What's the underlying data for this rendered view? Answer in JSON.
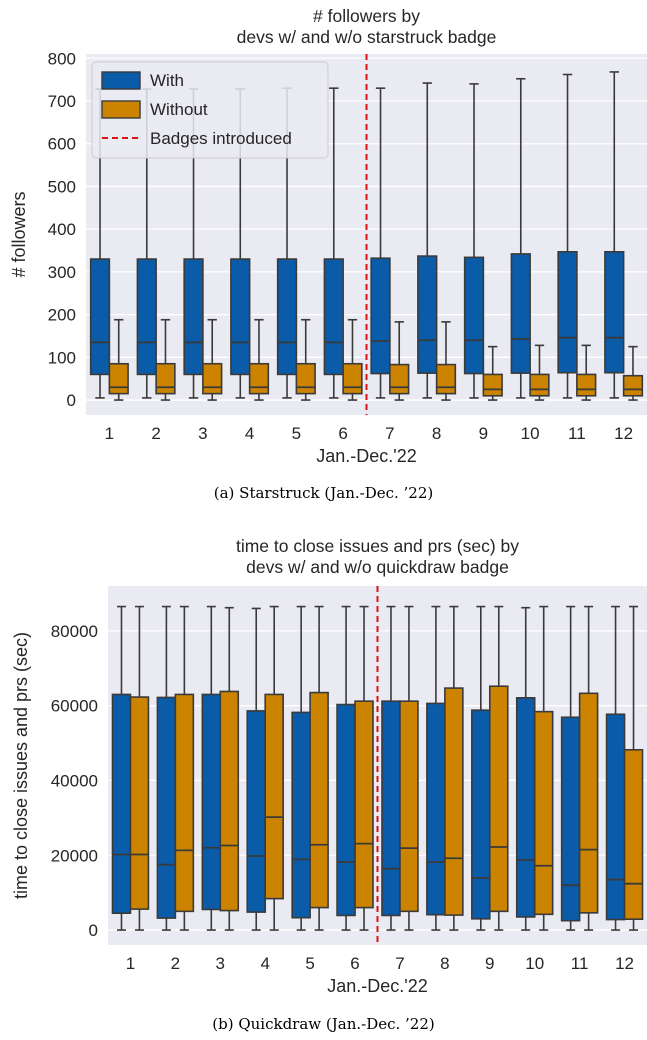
{
  "chart_data": [
    {
      "type": "box",
      "title": "# followers by\ndevs w/ and w/o starstruck badge",
      "xlabel": "Jan.-Dec.'22",
      "ylabel": "# followers",
      "ylim": [
        -35,
        810
      ],
      "yticks": [
        0,
        100,
        200,
        300,
        400,
        500,
        600,
        700,
        800
      ],
      "categories": [
        "1",
        "2",
        "3",
        "4",
        "5",
        "6",
        "7",
        "8",
        "9",
        "10",
        "11",
        "12"
      ],
      "legend": {
        "placement": "top-left",
        "with": "With",
        "without": "Without",
        "line": "Badges introduced"
      },
      "badge_introduced_at": 6,
      "grid": true,
      "series": [
        {
          "name": "With",
          "color": "#0a5ba8",
          "boxes": [
            {
              "whislo": 5,
              "q1": 60,
              "med": 135,
              "q3": 330,
              "whishi": 728
            },
            {
              "whislo": 5,
              "q1": 60,
              "med": 135,
              "q3": 330,
              "whishi": 728
            },
            {
              "whislo": 5,
              "q1": 60,
              "med": 135,
              "q3": 330,
              "whishi": 728
            },
            {
              "whislo": 5,
              "q1": 60,
              "med": 135,
              "q3": 330,
              "whishi": 728
            },
            {
              "whislo": 5,
              "q1": 60,
              "med": 135,
              "q3": 330,
              "whishi": 730
            },
            {
              "whislo": 5,
              "q1": 60,
              "med": 135,
              "q3": 330,
              "whishi": 730
            },
            {
              "whislo": 5,
              "q1": 62,
              "med": 138,
              "q3": 332,
              "whishi": 730
            },
            {
              "whislo": 5,
              "q1": 63,
              "med": 140,
              "q3": 337,
              "whishi": 742
            },
            {
              "whislo": 5,
              "q1": 62,
              "med": 140,
              "q3": 334,
              "whishi": 740
            },
            {
              "whislo": 5,
              "q1": 63,
              "med": 143,
              "q3": 342,
              "whishi": 752
            },
            {
              "whislo": 5,
              "q1": 64,
              "med": 146,
              "q3": 347,
              "whishi": 762
            },
            {
              "whislo": 5,
              "q1": 64,
              "med": 146,
              "q3": 347,
              "whishi": 768
            }
          ]
        },
        {
          "name": "Without",
          "color": "#cc8400",
          "boxes": [
            {
              "whislo": 0,
              "q1": 15,
              "med": 30,
              "q3": 85,
              "whishi": 188
            },
            {
              "whislo": 0,
              "q1": 15,
              "med": 30,
              "q3": 85,
              "whishi": 188
            },
            {
              "whislo": 0,
              "q1": 15,
              "med": 30,
              "q3": 85,
              "whishi": 188
            },
            {
              "whislo": 0,
              "q1": 15,
              "med": 30,
              "q3": 85,
              "whishi": 188
            },
            {
              "whislo": 0,
              "q1": 15,
              "med": 30,
              "q3": 85,
              "whishi": 188
            },
            {
              "whislo": 0,
              "q1": 15,
              "med": 30,
              "q3": 85,
              "whishi": 188
            },
            {
              "whislo": 0,
              "q1": 15,
              "med": 30,
              "q3": 83,
              "whishi": 183
            },
            {
              "whislo": 0,
              "q1": 15,
              "med": 30,
              "q3": 83,
              "whishi": 183
            },
            {
              "whislo": 0,
              "q1": 10,
              "med": 25,
              "q3": 60,
              "whishi": 125
            },
            {
              "whislo": 0,
              "q1": 10,
              "med": 25,
              "q3": 60,
              "whishi": 128
            },
            {
              "whislo": 0,
              "q1": 10,
              "med": 25,
              "q3": 60,
              "whishi": 128
            },
            {
              "whislo": 0,
              "q1": 10,
              "med": 25,
              "q3": 57,
              "whishi": 125
            }
          ]
        }
      ]
    },
    {
      "type": "box",
      "title": "time to close issues and prs (sec) by\ndevs w/ and w/o quickdraw badge",
      "xlabel": "Jan.-Dec.'22",
      "ylabel": "time to close issues and prs (sec)",
      "ylim": [
        -4000,
        92000
      ],
      "yticks": [
        0,
        20000,
        40000,
        60000,
        80000
      ],
      "categories": [
        "1",
        "2",
        "3",
        "4",
        "5",
        "6",
        "7",
        "8",
        "9",
        "10",
        "11",
        "12"
      ],
      "badge_introduced_at": 6,
      "grid": true,
      "series": [
        {
          "name": "With",
          "color": "#0a5ba8",
          "boxes": [
            {
              "whislo": 0,
              "q1": 4500,
              "med": 20200,
              "q3": 63000,
              "whishi": 86500
            },
            {
              "whislo": 0,
              "q1": 3200,
              "med": 17500,
              "q3": 62200,
              "whishi": 86500
            },
            {
              "whislo": 0,
              "q1": 5500,
              "med": 22000,
              "q3": 63000,
              "whishi": 86500
            },
            {
              "whislo": 0,
              "q1": 4800,
              "med": 19800,
              "q3": 58600,
              "whishi": 86000
            },
            {
              "whislo": 0,
              "q1": 3300,
              "med": 18900,
              "q3": 58200,
              "whishi": 86500
            },
            {
              "whislo": 0,
              "q1": 3900,
              "med": 18200,
              "q3": 60300,
              "whishi": 86500
            },
            {
              "whislo": 0,
              "q1": 3900,
              "med": 16400,
              "q3": 61200,
              "whishi": 86500
            },
            {
              "whislo": 0,
              "q1": 4100,
              "med": 18200,
              "q3": 60600,
              "whishi": 86500
            },
            {
              "whislo": 0,
              "q1": 3000,
              "med": 13900,
              "q3": 58800,
              "whishi": 86500
            },
            {
              "whislo": 0,
              "q1": 3500,
              "med": 18700,
              "q3": 62100,
              "whishi": 86200
            },
            {
              "whislo": 0,
              "q1": 2500,
              "med": 12000,
              "q3": 56900,
              "whishi": 86500
            },
            {
              "whislo": 0,
              "q1": 2800,
              "med": 13500,
              "q3": 57700,
              "whishi": 86500
            }
          ]
        },
        {
          "name": "Without",
          "color": "#cc8400",
          "boxes": [
            {
              "whislo": 0,
              "q1": 5600,
              "med": 20200,
              "q3": 62300,
              "whishi": 86500
            },
            {
              "whislo": 0,
              "q1": 5000,
              "med": 21300,
              "q3": 63000,
              "whishi": 86500
            },
            {
              "whislo": 0,
              "q1": 5200,
              "med": 22600,
              "q3": 63800,
              "whishi": 86200
            },
            {
              "whislo": 0,
              "q1": 8400,
              "med": 30200,
              "q3": 63000,
              "whishi": 86500
            },
            {
              "whislo": 0,
              "q1": 6000,
              "med": 22800,
              "q3": 63500,
              "whishi": 86500
            },
            {
              "whislo": 0,
              "q1": 6000,
              "med": 23100,
              "q3": 61200,
              "whishi": 86500
            },
            {
              "whislo": 0,
              "q1": 5000,
              "med": 21900,
              "q3": 61200,
              "whishi": 86500
            },
            {
              "whislo": 0,
              "q1": 4000,
              "med": 19200,
              "q3": 64700,
              "whishi": 86500
            },
            {
              "whislo": 0,
              "q1": 5000,
              "med": 22200,
              "q3": 65200,
              "whishi": 86500
            },
            {
              "whislo": 0,
              "q1": 4200,
              "med": 17200,
              "q3": 58400,
              "whishi": 86500
            },
            {
              "whislo": 0,
              "q1": 4600,
              "med": 21500,
              "q3": 63300,
              "whishi": 86500
            },
            {
              "whislo": 0,
              "q1": 2900,
              "med": 12400,
              "q3": 48200,
              "whishi": 86500
            }
          ]
        }
      ]
    }
  ],
  "captions": {
    "a": "(a) Starstruck (Jan.-Dec. ’22)",
    "b": "(b) Quickdraw (Jan.-Dec. ’22)"
  }
}
